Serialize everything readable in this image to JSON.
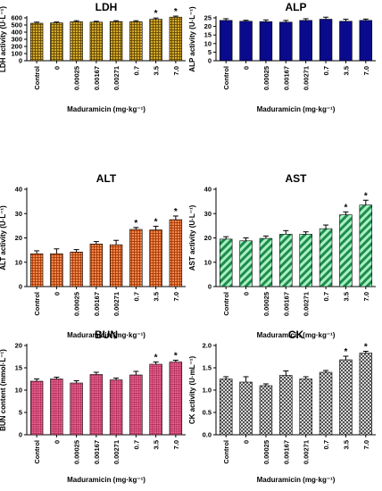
{
  "chart_data": [
    {
      "type": "bar",
      "title": "LDH",
      "ylabel": "LDH activity (U·L⁻¹)",
      "xlabel": "Maduramicin (mg·kg⁻¹)",
      "categories": [
        "Control",
        "0",
        "0.00025",
        "0.00167",
        "0.00271",
        "0.7",
        "3.5",
        "7.0"
      ],
      "values": [
        525,
        530,
        545,
        540,
        548,
        545,
        580,
        610
      ],
      "errors": [
        15,
        12,
        15,
        12,
        12,
        15,
        18,
        14
      ],
      "significant": [
        "",
        "",
        "",
        "",
        "",
        "",
        "*",
        "*"
      ],
      "ylim": [
        0,
        600
      ],
      "yticks": [
        "0",
        "100",
        "200",
        "300",
        "400",
        "500",
        "600"
      ],
      "color": "#b8860b",
      "fill": "grid"
    },
    {
      "type": "bar",
      "title": "ALP",
      "ylabel": "ALP activity (U·L⁻¹)",
      "xlabel": "Maduramicin (mg·kg⁻¹)",
      "categories": [
        "Control",
        "0",
        "0.00025",
        "0.00167",
        "0.00271",
        "0.7",
        "3.5",
        "7.0"
      ],
      "values": [
        23.5,
        23,
        22.8,
        22.5,
        23.5,
        24.2,
        23,
        23.5
      ],
      "errors": [
        1,
        0.6,
        1,
        1,
        1,
        1.2,
        1.2,
        0.8
      ],
      "significant": [
        "",
        "",
        "",
        "",
        "",
        "",
        "",
        ""
      ],
      "ylim": [
        0,
        25
      ],
      "yticks": [
        "0",
        "5",
        "10",
        "15",
        "20",
        "25"
      ],
      "color": "#0a0a8c",
      "fill": "solid"
    },
    {
      "type": "bar",
      "title": "ALT",
      "ylabel": "ALT activity (U·L⁻¹)",
      "xlabel": "Maduramicin (mg·kg⁻¹)",
      "categories": [
        "Control",
        "0",
        "0.00025",
        "0.00167",
        "0.00271",
        "0.7",
        "3.5",
        "7.0"
      ],
      "values": [
        13.5,
        13.5,
        14.2,
        17.5,
        17.2,
        23.5,
        23.3,
        27.5
      ],
      "errors": [
        1.2,
        2,
        1,
        1,
        1.8,
        0.8,
        1.5,
        1.5
      ],
      "significant": [
        "",
        "",
        "",
        "",
        "",
        "*",
        "*",
        "*"
      ],
      "ylim": [
        0,
        40
      ],
      "yticks": [
        "0",
        "10",
        "20",
        "30",
        "40"
      ],
      "color": "#e8601c",
      "fill": "dense"
    },
    {
      "type": "bar",
      "title": "AST",
      "ylabel": "AST activity (U·L⁻¹)",
      "xlabel": "Maduramicin (mg·kg⁻¹)",
      "categories": [
        "Control",
        "0",
        "0.00025",
        "0.00167",
        "0.00271",
        "0.7",
        "3.5",
        "7.0"
      ],
      "values": [
        19.5,
        18.8,
        19.8,
        21.5,
        21.5,
        23.8,
        29.5,
        33.5
      ],
      "errors": [
        1,
        1.2,
        1,
        1.5,
        1,
        1.5,
        1.2,
        2
      ],
      "significant": [
        "",
        "",
        "",
        "",
        "",
        "",
        "*",
        "*"
      ],
      "ylim": [
        0,
        40
      ],
      "yticks": [
        "0",
        "10",
        "20",
        "30",
        "40"
      ],
      "color": "#2ecc71",
      "fill": "diagonal"
    },
    {
      "type": "bar",
      "title": "BUN",
      "ylabel": "BUN content (mmol·L⁻¹)",
      "xlabel": "Maduramicin (mg·kg⁻¹)",
      "categories": [
        "Control",
        "0",
        "0.00025",
        "0.00167",
        "0.00271",
        "0.7",
        "3.5",
        "7.0"
      ],
      "values": [
        12,
        12.5,
        11.6,
        13.5,
        12.3,
        13.4,
        15.8,
        16.3
      ],
      "errors": [
        0.5,
        0.4,
        0.5,
        0.5,
        0.4,
        0.8,
        0.5,
        0.4
      ],
      "significant": [
        "",
        "",
        "",
        "",
        "",
        "",
        "*",
        "*"
      ],
      "ylim": [
        0,
        20
      ],
      "yticks": [
        "0",
        "5",
        "10",
        "15",
        "20"
      ],
      "color": "#e8457a",
      "fill": "fine"
    },
    {
      "type": "bar",
      "title": "CK",
      "ylabel": "CK activity (U·mL⁻¹)",
      "xlabel": "Maduramicin (mg·kg⁻¹)",
      "categories": [
        "Control",
        "0",
        "0.00025",
        "0.00167",
        "0.00271",
        "0.7",
        "3.5",
        "7.0"
      ],
      "values": [
        1.25,
        1.18,
        1.1,
        1.33,
        1.25,
        1.4,
        1.68,
        1.83
      ],
      "errors": [
        0.05,
        0.12,
        0.04,
        0.1,
        0.05,
        0.04,
        0.08,
        0.04
      ],
      "significant": [
        "",
        "",
        "",
        "",
        "",
        "",
        "*",
        "*"
      ],
      "ylim": [
        0,
        2.0
      ],
      "yticks": [
        "0.0",
        "0.5",
        "1.0",
        "1.5",
        "2.0"
      ],
      "color": "#555555",
      "fill": "checker"
    }
  ]
}
